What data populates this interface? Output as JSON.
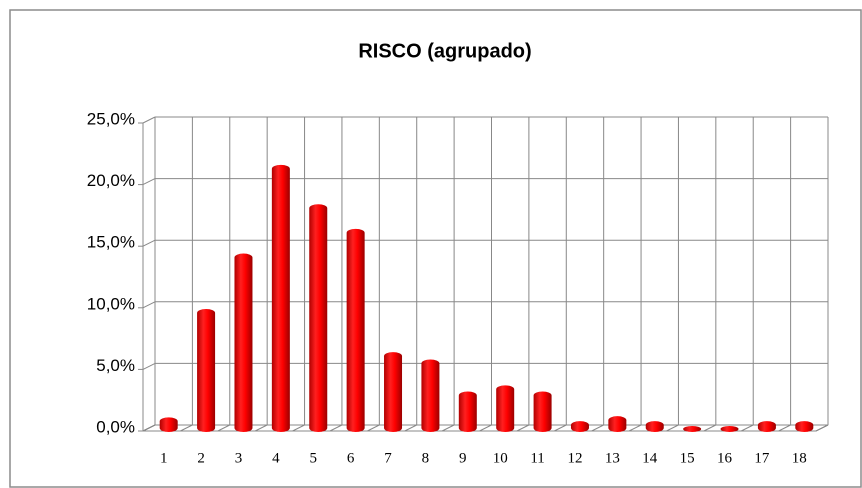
{
  "chart_data": {
    "type": "bar",
    "title": "RISCO (agrupado)",
    "categories": [
      "1",
      "2",
      "3",
      "4",
      "5",
      "6",
      "7",
      "8",
      "9",
      "10",
      "11",
      "12",
      "13",
      "14",
      "15",
      "16",
      "17",
      "18"
    ],
    "values": [
      0.7,
      9.5,
      14,
      21.2,
      18,
      16,
      6,
      5.4,
      2.8,
      3.3,
      2.8,
      0.4,
      0.8,
      0.4,
      0,
      0,
      0.4,
      0.4
    ],
    "color": "#ff0000",
    "ylim": [
      0,
      25
    ],
    "yticks": [
      {
        "value": 0,
        "label": "0,0%"
      },
      {
        "value": 5,
        "label": "5,0%"
      },
      {
        "value": 10,
        "label": "10,0%"
      },
      {
        "value": 15,
        "label": "15,0%"
      },
      {
        "value": 20,
        "label": "20,0%"
      },
      {
        "value": 25,
        "label": "25,0%"
      }
    ],
    "grid": true
  }
}
